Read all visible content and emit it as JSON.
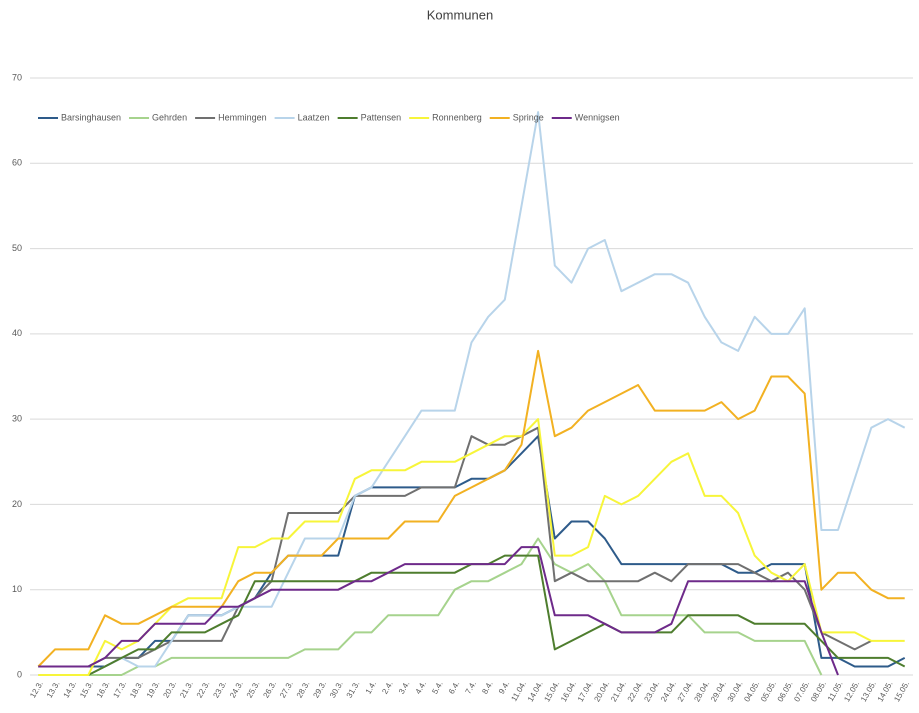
{
  "chart_data": {
    "type": "line",
    "title": "Kommunen",
    "categories": [
      "12.3.",
      "13.3.",
      "14.3.",
      "15.3.",
      "16.3.",
      "17.3.",
      "18.3.",
      "19.3.",
      "20.3.",
      "21.3.",
      "22.3.",
      "23.3.",
      "24.3.",
      "25.3.",
      "26.3.",
      "27.3.",
      "28.3.",
      "29.3.",
      "30.3.",
      "31.3.",
      "1.4.",
      "2.4.",
      "3.4.",
      "4.4.",
      "5.4.",
      "6.4.",
      "7.4.",
      "8.4.",
      "9.4.",
      "11.04.",
      "14.04.",
      "15.04.",
      "16.04.",
      "17.04.",
      "20.04.",
      "21.04.",
      "22.04.",
      "23.04.",
      "24.04.",
      "27.04.",
      "28.04.",
      "29.04.",
      "30.04.",
      "04.05.",
      "05.05.",
      "06.05.",
      "07.05.",
      "08.05.",
      "11.05.",
      "12.05.",
      "13.05.",
      "14.05.",
      "15.05."
    ],
    "series": [
      {
        "name": "Barsinghausen",
        "color": "#2e5b8a",
        "values": [
          1,
          1,
          1,
          1,
          1,
          2,
          2,
          4,
          4,
          7,
          7,
          7,
          8,
          9,
          12,
          14,
          14,
          14,
          14,
          21,
          22,
          22,
          22,
          22,
          22,
          22,
          23,
          23,
          24,
          26,
          28,
          16,
          18,
          18,
          16,
          13,
          13,
          13,
          13,
          13,
          13,
          13,
          12,
          12,
          13,
          13,
          13,
          2,
          2,
          1,
          1,
          1,
          2
        ]
      },
      {
        "name": "Gehrden",
        "color": "#a6d38d",
        "values": [
          0,
          0,
          0,
          0,
          0,
          0,
          1,
          1,
          2,
          2,
          2,
          2,
          2,
          2,
          2,
          2,
          3,
          3,
          3,
          5,
          5,
          7,
          7,
          7,
          7,
          10,
          11,
          11,
          12,
          13,
          16,
          13,
          12,
          13,
          11,
          7,
          7,
          7,
          7,
          7,
          5,
          5,
          5,
          4,
          4,
          4,
          4,
          0,
          null,
          null,
          null,
          null,
          null
        ]
      },
      {
        "name": "Hemmingen",
        "color": "#707070",
        "values": [
          1,
          1,
          1,
          1,
          2,
          2,
          2,
          3,
          4,
          4,
          4,
          4,
          8,
          9,
          11,
          19,
          19,
          19,
          19,
          21,
          21,
          21,
          21,
          22,
          22,
          22,
          28,
          27,
          27,
          28,
          29,
          11,
          12,
          11,
          11,
          11,
          11,
          12,
          11,
          13,
          13,
          13,
          13,
          12,
          11,
          12,
          10,
          5,
          4,
          3,
          4,
          null,
          null
        ]
      },
      {
        "name": "Laatzen",
        "color": "#b8d4ea",
        "values": [
          0,
          0,
          0,
          0,
          1,
          2,
          1,
          1,
          4,
          7,
          7,
          7,
          8,
          8,
          8,
          12,
          16,
          16,
          16,
          21,
          22,
          25,
          28,
          31,
          31,
          31,
          39,
          42,
          44,
          55,
          66,
          48,
          46,
          50,
          51,
          45,
          46,
          47,
          47,
          46,
          42,
          39,
          38,
          42,
          40,
          40,
          43,
          17,
          17,
          23,
          29,
          30,
          29
        ]
      },
      {
        "name": "Pattensen",
        "color": "#4e7d2e",
        "values": [
          null,
          null,
          null,
          0,
          1,
          2,
          3,
          3,
          5,
          5,
          5,
          6,
          7,
          11,
          11,
          11,
          11,
          11,
          11,
          11,
          12,
          12,
          12,
          12,
          12,
          12,
          13,
          13,
          14,
          14,
          14,
          3,
          4,
          5,
          6,
          5,
          5,
          5,
          5,
          7,
          7,
          7,
          7,
          6,
          6,
          6,
          6,
          4,
          2,
          2,
          2,
          2,
          1
        ]
      },
      {
        "name": "Ronnenberg",
        "color": "#f7f53a",
        "values": [
          0,
          0,
          0,
          0,
          4,
          3,
          4,
          6,
          8,
          9,
          9,
          9,
          15,
          15,
          16,
          16,
          18,
          18,
          18,
          23,
          24,
          24,
          24,
          25,
          25,
          25,
          26,
          27,
          28,
          28,
          30,
          14,
          14,
          15,
          21,
          20,
          21,
          23,
          25,
          26,
          21,
          21,
          19,
          14,
          12,
          11,
          13,
          5,
          5,
          5,
          4,
          4,
          4
        ]
      },
      {
        "name": "Springe",
        "color": "#f2b122",
        "values": [
          1,
          3,
          3,
          3,
          7,
          6,
          6,
          7,
          8,
          8,
          8,
          8,
          11,
          12,
          12,
          14,
          14,
          14,
          16,
          16,
          16,
          16,
          18,
          18,
          18,
          21,
          22,
          23,
          24,
          27,
          38,
          28,
          29,
          31,
          32,
          33,
          34,
          31,
          31,
          31,
          31,
          32,
          30,
          31,
          35,
          35,
          33,
          10,
          12,
          12,
          10,
          9,
          9
        ]
      },
      {
        "name": "Wennigsen",
        "color": "#6e2a8a",
        "values": [
          1,
          1,
          1,
          1,
          2,
          4,
          4,
          6,
          6,
          6,
          6,
          8,
          8,
          9,
          10,
          10,
          10,
          10,
          10,
          11,
          11,
          12,
          13,
          13,
          13,
          13,
          13,
          13,
          13,
          15,
          15,
          7,
          7,
          7,
          6,
          5,
          5,
          5,
          6,
          11,
          11,
          11,
          11,
          11,
          11,
          11,
          11,
          5,
          0,
          null,
          null,
          null,
          null
        ]
      }
    ],
    "ylim": [
      0,
      70
    ],
    "yticks": [
      0,
      10,
      20,
      30,
      40,
      50,
      60,
      70
    ],
    "grid": true,
    "legend": "top-left"
  }
}
